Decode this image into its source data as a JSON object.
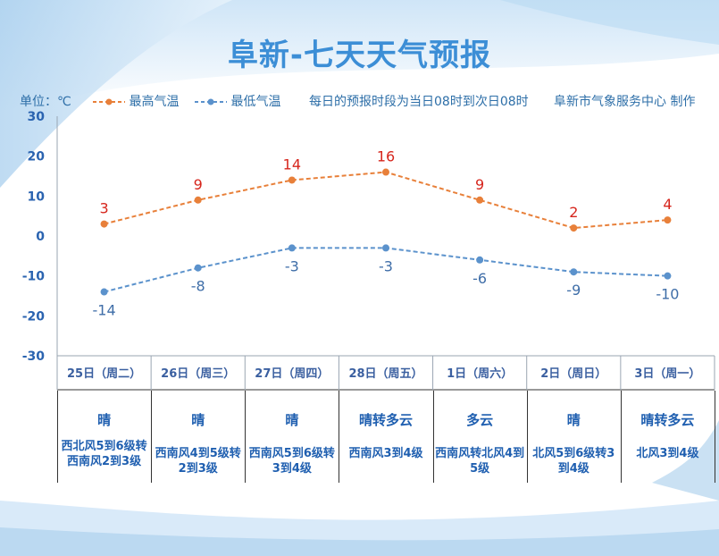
{
  "title": "阜新-七天天气预报",
  "legend": {
    "unit": "单位：℃",
    "high_label": "最高气温",
    "low_label": "最低气温",
    "note": "每日的预报时段为当日08时到次日08时",
    "source": "阜新市气象服务中心 制作"
  },
  "colors": {
    "high": "#e8803a",
    "low": "#5b92cc",
    "high_label": "#d6251c",
    "low_label": "#3f6ea8",
    "axis_label": "#2a63b0",
    "text_blue": "#1f5fb0"
  },
  "chart_data": {
    "type": "line",
    "categories": [
      "25日（周二）",
      "26日（周三）",
      "27日（周四）",
      "28日（周五）",
      "1日（周六）",
      "2日（周日）",
      "3日（周一）"
    ],
    "series": [
      {
        "name": "最高气温",
        "values": [
          3,
          9,
          14,
          16,
          9,
          2,
          4
        ]
      },
      {
        "name": "最低气温",
        "values": [
          -14,
          -8,
          -3,
          -3,
          -6,
          -9,
          -10
        ]
      }
    ],
    "ylim": [
      -30,
      30
    ],
    "yticks": [
      30,
      20,
      10,
      0,
      -10,
      -20,
      -30
    ],
    "xlabel": "",
    "ylabel": "单位：℃"
  },
  "weather": [
    {
      "condition": "晴",
      "wind": "西北风5到6级转西南风2到3级"
    },
    {
      "condition": "晴",
      "wind": "西南风4到5级转2到3级"
    },
    {
      "condition": "晴",
      "wind": "西南风5到6级转3到4级"
    },
    {
      "condition": "晴转多云",
      "wind": "西南风3到4级"
    },
    {
      "condition": "多云",
      "wind": "西南风转北风4到5级"
    },
    {
      "condition": "晴",
      "wind": "北风5到6级转3到4级"
    },
    {
      "condition": "晴转多云",
      "wind": "北风3到4级"
    }
  ]
}
